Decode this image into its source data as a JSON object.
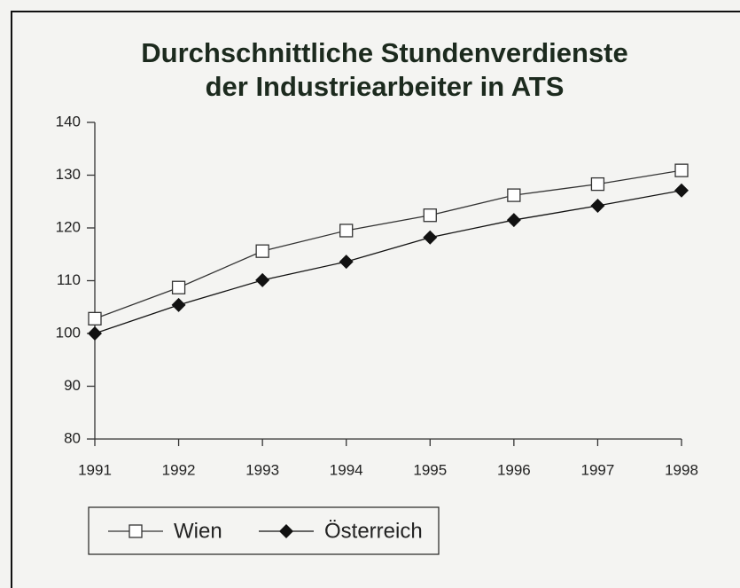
{
  "chart_data": {
    "type": "line",
    "title": "Durchschnittliche Stundenverdienste",
    "subtitle": "der Industriearbeiter in ATS",
    "x": [
      1991,
      1992,
      1993,
      1994,
      1995,
      1996,
      1997,
      1998
    ],
    "series": [
      {
        "name": "Wien",
        "color": "#333333",
        "marker": "square-open",
        "values": [
          102.8,
          108.7,
          115.6,
          119.5,
          122.4,
          126.2,
          128.3,
          130.9
        ]
      },
      {
        "name": "Österreich",
        "color": "#111111",
        "marker": "diamond-filled",
        "values": [
          100,
          105.4,
          110.1,
          113.6,
          118.2,
          121.5,
          124.2,
          127.1
        ]
      }
    ],
    "xlim": [
      1991,
      1998
    ],
    "xticks": [
      1991,
      1992,
      1993,
      1994,
      1995,
      1996,
      1997,
      1998
    ],
    "ylim": [
      80,
      140
    ],
    "yticks": [
      80,
      90,
      100,
      110,
      120,
      130,
      140
    ],
    "grid": false,
    "legend": "bottom-left"
  }
}
